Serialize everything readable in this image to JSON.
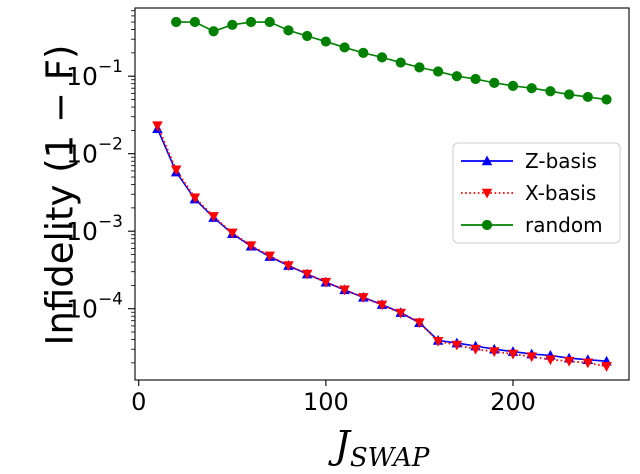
{
  "chart_data": {
    "type": "line",
    "title": "",
    "xlabel_main": "J",
    "xlabel_sub": "SWAP",
    "ylabel": "Infidelity (1 − F)",
    "yscale": "log",
    "xlim": [
      -2,
      262
    ],
    "ylim_log10": [
      -4.92,
      -0.12
    ],
    "x_ticks": [
      0,
      100,
      200
    ],
    "x_tick_labels": [
      "0",
      "100",
      "200"
    ],
    "y_ticks_log10": [
      -4,
      -3,
      -2,
      -1
    ],
    "y_tick_base": "10",
    "y_tick_exponents": [
      "−4",
      "−3",
      "−2",
      "−1"
    ],
    "grid": false,
    "legend_position": "center-right",
    "series": [
      {
        "name": "Z-basis",
        "color": "#0000ff",
        "linestyle": "solid",
        "marker": "triangle-up",
        "x": [
          10,
          20,
          30,
          40,
          50,
          60,
          70,
          80,
          90,
          100,
          110,
          120,
          130,
          140,
          150,
          160,
          170,
          180,
          190,
          200,
          210,
          220,
          230,
          240,
          250
        ],
        "y": [
          0.021,
          0.0058,
          0.0026,
          0.0015,
          0.00093,
          0.00064,
          0.00047,
          0.00036,
          0.00028,
          0.00022,
          0.000175,
          0.00014,
          0.000113,
          8.9e-05,
          6.6e-05,
          3.9e-05,
          3.6e-05,
          3.3e-05,
          3e-05,
          2.8e-05,
          2.6e-05,
          2.5e-05,
          2.3e-05,
          2.2e-05,
          2.1e-05
        ]
      },
      {
        "name": "X-basis",
        "color": "#ff0000",
        "linestyle": "dotted",
        "marker": "triangle-down",
        "x": [
          10,
          20,
          30,
          40,
          50,
          60,
          70,
          80,
          90,
          100,
          110,
          120,
          130,
          140,
          150,
          160,
          170,
          180,
          190,
          200,
          210,
          220,
          230,
          240,
          250
        ],
        "y": [
          0.023,
          0.0062,
          0.0027,
          0.00155,
          0.00095,
          0.00065,
          0.00048,
          0.00036,
          0.00028,
          0.00022,
          0.000175,
          0.00014,
          0.000112,
          8.8e-05,
          6.6e-05,
          3.8e-05,
          3.4e-05,
          3e-05,
          2.8e-05,
          2.6e-05,
          2.4e-05,
          2.2e-05,
          2.1e-05,
          2e-05,
          1.8e-05
        ]
      },
      {
        "name": "random",
        "color": "#008000",
        "linestyle": "solid",
        "marker": "circle",
        "x": [
          20,
          30,
          40,
          50,
          60,
          70,
          80,
          90,
          100,
          110,
          120,
          130,
          140,
          150,
          160,
          170,
          180,
          190,
          200,
          210,
          220,
          230,
          240,
          250
        ],
        "y": [
          0.5,
          0.5,
          0.38,
          0.46,
          0.5,
          0.5,
          0.39,
          0.33,
          0.28,
          0.235,
          0.2,
          0.175,
          0.15,
          0.13,
          0.115,
          0.1,
          0.092,
          0.082,
          0.075,
          0.07,
          0.064,
          0.058,
          0.054,
          0.05
        ]
      }
    ]
  }
}
